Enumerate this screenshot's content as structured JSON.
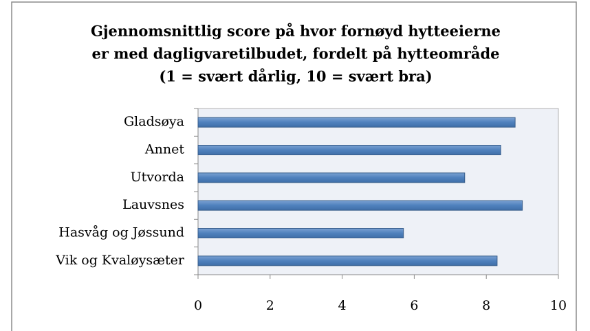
{
  "chart_data": {
    "type": "bar",
    "orientation": "horizontal",
    "title": [
      "Gjennomsnittlig score på hvor fornøyd hytteeierne",
      "er med dagligvaretilbudet, fordelt på hytteområde",
      "(1 = svært dårlig, 10 = svært bra)"
    ],
    "categories": [
      "Gladsøya",
      "Annet",
      "Utvorda",
      "Lauvsnes",
      "Hasvåg og Jøssund",
      "Vik og Kvaløysæter"
    ],
    "values": [
      8.8,
      8.4,
      7.4,
      9.0,
      5.7,
      8.3
    ],
    "color": "#4f81bd",
    "xlim": [
      0,
      10
    ],
    "xticks": [
      0,
      2,
      4,
      6,
      8,
      10
    ],
    "grid": false
  }
}
